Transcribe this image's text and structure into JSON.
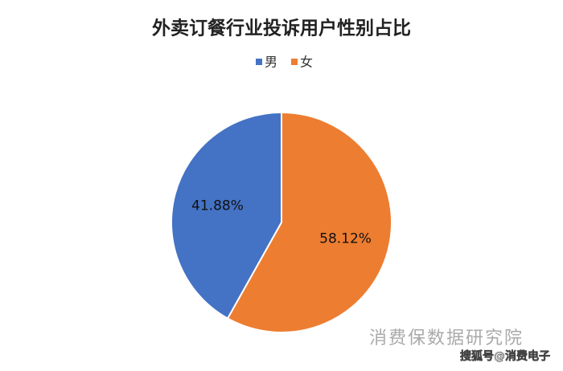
{
  "chart_data": {
    "type": "pie",
    "title": "外卖订餐行业投诉用户性别占比",
    "categories": [
      "男",
      "女"
    ],
    "values": [
      41.88,
      58.12
    ],
    "value_labels": [
      "41.88%",
      "58.12%"
    ],
    "colors": [
      "#4472c4",
      "#ed7d31"
    ],
    "legend": "top"
  },
  "watermarks": [
    "消费保数据研究院",
    "搜狐号@消费电子"
  ]
}
